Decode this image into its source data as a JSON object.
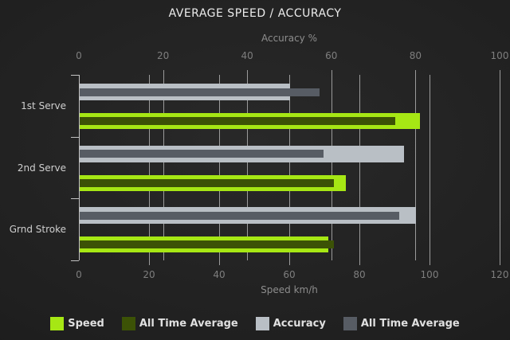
{
  "chart_data": {
    "type": "bar",
    "orientation": "horizontal",
    "title": "AVERAGE SPEED / ACCURACY",
    "categories": [
      "1st Serve",
      "2nd Serve",
      "Grnd Stroke"
    ],
    "axis_top": {
      "label": "Accuracy %",
      "range": [
        0,
        100
      ],
      "ticks": [
        "0",
        "20",
        "40",
        "60",
        "80",
        "100"
      ]
    },
    "axis_bottom": {
      "label": "Speed km/h",
      "range": [
        0,
        120
      ],
      "ticks": [
        "0",
        "20",
        "40",
        "60",
        "80",
        "100",
        "120"
      ]
    },
    "grid": true,
    "legend_position": "bottom",
    "series": [
      {
        "name": "Speed",
        "axis": "bottom",
        "color": "#a6e714",
        "values": [
          97,
          76,
          71
        ]
      },
      {
        "name": "All Time Average",
        "axis": "bottom",
        "color": "#3c5206",
        "values": [
          90,
          72.5,
          72.5
        ]
      },
      {
        "name": "Accuracy",
        "axis": "top",
        "color": "#b9bfc5",
        "values": [
          50,
          77,
          80
        ]
      },
      {
        "name": "All Time Average",
        "axis": "top",
        "color": "#575c64",
        "values": [
          57,
          58,
          76
        ]
      }
    ],
    "legend": [
      {
        "label": "Speed",
        "color": "#a6e714"
      },
      {
        "label": "All Time Average",
        "color": "#3c5206"
      },
      {
        "label": "Accuracy",
        "color": "#b9bfc5"
      },
      {
        "label": "All Time Average",
        "color": "#575c64"
      }
    ]
  }
}
